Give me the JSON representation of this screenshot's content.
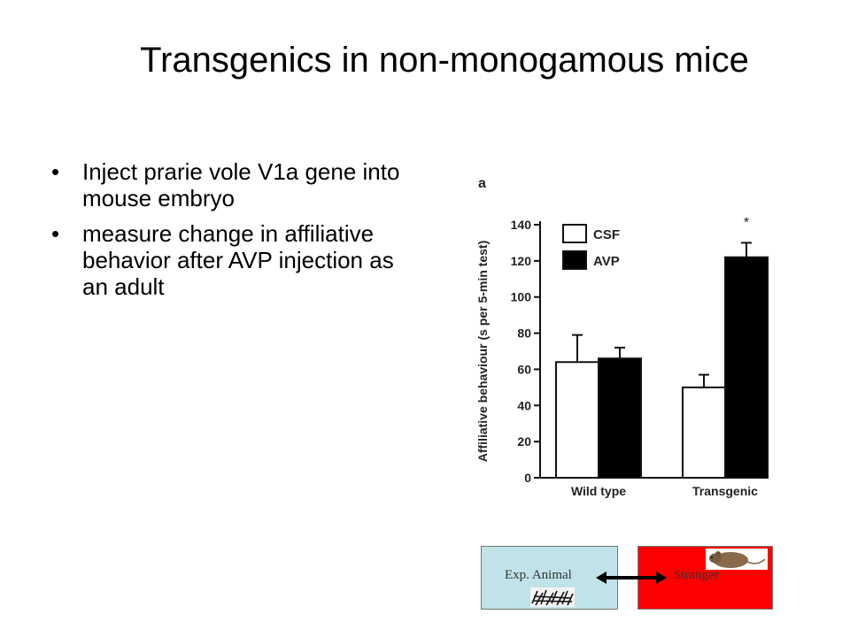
{
  "slide": {
    "title": "Transgenics in non-monogamous mice",
    "bullet_char": "•",
    "bullets": [
      "Inject prarie vole V1a gene into mouse embryo",
      "measure change in affiliative behavior after AVP injection as an adult"
    ]
  },
  "chart_data": {
    "type": "bar",
    "panel_label": "a",
    "categories": [
      "Wild type",
      "Transgenic"
    ],
    "series": [
      {
        "name": "CSF",
        "color": "#ffffff",
        "values": [
          64,
          50
        ],
        "errors": [
          15,
          7
        ]
      },
      {
        "name": "AVP",
        "color": "#000000",
        "values": [
          66,
          122
        ],
        "errors": [
          6,
          8
        ]
      }
    ],
    "ylabel": "Affiliative behaviour (s per 5-min test)",
    "ylim": [
      0,
      140
    ],
    "yticks": [
      "0",
      "20",
      "40",
      "60",
      "80",
      "100",
      "120",
      "140"
    ],
    "significance": {
      "category": "Transgenic",
      "mark": "*"
    },
    "legend_position": "top-left",
    "grid": false
  },
  "diagram": {
    "left_box_label": "Exp. Animal",
    "right_box_label": "Stranger",
    "left_color": "#bfe3e8",
    "right_color": "#ff0000",
    "mouse_icon": "mouse-icon",
    "bedding_icon": "bedding-icon"
  }
}
